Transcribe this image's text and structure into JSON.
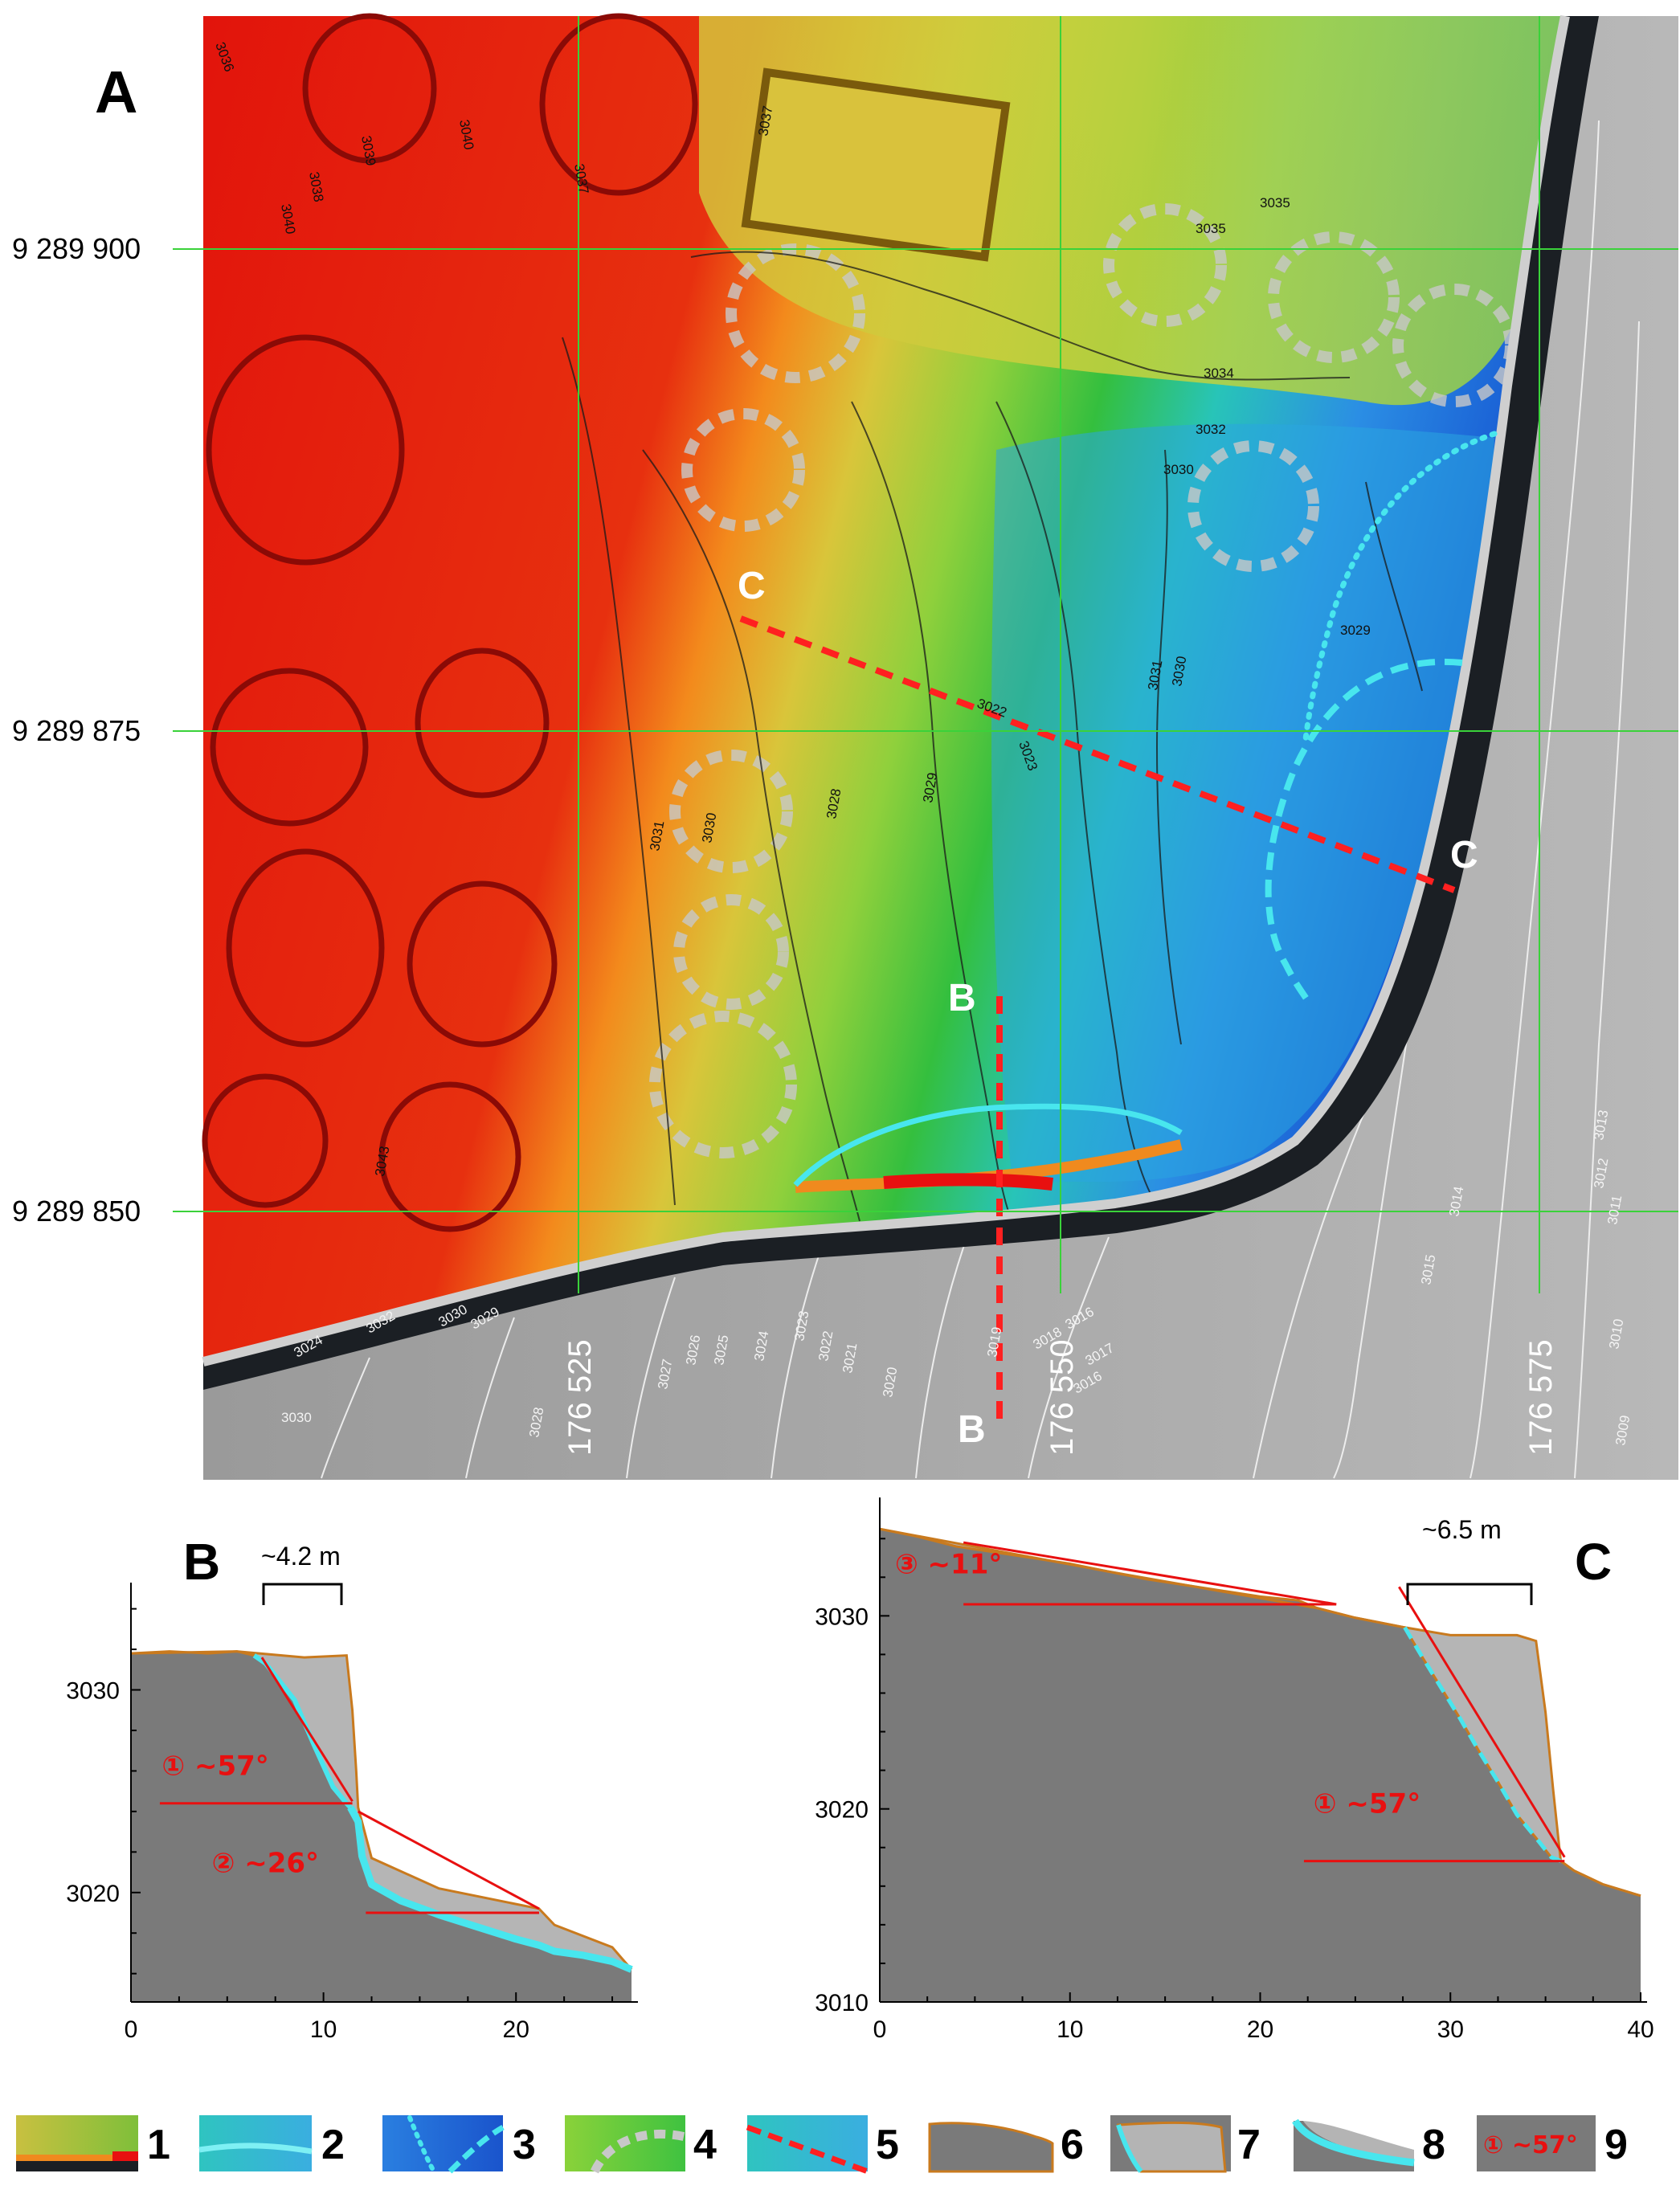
{
  "figure": {
    "map_panel": {
      "label": "A",
      "northing_labels": [
        "9 289 900",
        "9 289 875",
        "9 289 850"
      ],
      "easting_labels": [
        "176 525",
        "176 550",
        "176 575"
      ],
      "profile_labels": [
        "C",
        "C",
        "B",
        "B"
      ],
      "contour_labels": [
        "3036",
        "3039",
        "3040",
        "3037",
        "3038",
        "3040",
        "3037",
        "3035",
        "3035",
        "3034",
        "3032",
        "3030",
        "3029",
        "3031",
        "3030",
        "3023",
        "3029",
        "3028",
        "3031",
        "3030",
        "3043",
        "3022",
        "3013",
        "3012",
        "3011",
        "3014",
        "3015",
        "3010",
        "3009",
        "3016",
        "3017",
        "3016",
        "3018",
        "3019",
        "3020",
        "3021",
        "3022",
        "3023",
        "3024",
        "3025",
        "3026",
        "3027",
        "3028",
        "3029",
        "3030",
        "3032",
        "3024",
        "3030"
      ],
      "colors": {
        "grid": "#3ad23a",
        "profile_line": "#ff2020",
        "scar": "#48e6ee",
        "fill_orange": "#f08a1e",
        "fill_red": "#e81010",
        "river": "#1b1f24",
        "bank": "#bfbfbf"
      }
    },
    "legend": {
      "items": [
        {
          "num": "1",
          "icon": "dem-swatch-fill"
        },
        {
          "num": "2",
          "icon": "scar-line-swatch"
        },
        {
          "num": "3",
          "icon": "dotted-dashed-swatch"
        },
        {
          "num": "4",
          "icon": "circle-outline-swatch"
        },
        {
          "num": "5",
          "icon": "profile-line-swatch"
        },
        {
          "num": "6",
          "icon": "terrain-profile-swatch"
        },
        {
          "num": "7",
          "icon": "removed-volume-swatch"
        },
        {
          "num": "8",
          "icon": "scar-profile-swatch"
        },
        {
          "num": "9",
          "icon": "angle-label-swatch",
          "sample": "① ~57°"
        }
      ]
    }
  },
  "chart_data": [
    {
      "type": "area",
      "panel_label": "B",
      "x_ticks": [
        "0",
        "10",
        "20"
      ],
      "y_ticks": [
        "3020",
        "3030"
      ],
      "xlim": [
        0,
        26
      ],
      "ylim": [
        3014.6,
        3034.5
      ],
      "width_annotation": "~4.2 m",
      "series": [
        {
          "role": "current_surface",
          "x": [
            0,
            2,
            4,
            5.5,
            6.4,
            7,
            8.5,
            9.5,
            10.5,
            11.2,
            11.4,
            11.8,
            12.0,
            12.5,
            14,
            16,
            18,
            20,
            21.2,
            22,
            23.5,
            25,
            26
          ],
          "y": [
            3031.8,
            3031.9,
            3031.8,
            3031.9,
            3031.7,
            3031.3,
            3029.5,
            3027.3,
            3025.2,
            3024.4,
            3024.2,
            3023.5,
            3021.8,
            3020.4,
            3019.6,
            3018.9,
            3018.3,
            3017.7,
            3017.4,
            3017.1,
            3016.9,
            3016.6,
            3016.2
          ]
        },
        {
          "role": "pre_failure_surface",
          "x": [
            0,
            5.5,
            9,
            11.2,
            11.5,
            11.7,
            11.8,
            12.5,
            16,
            21.2,
            22,
            25,
            26
          ],
          "y": [
            3031.8,
            3031.9,
            3031.6,
            3031.7,
            3029,
            3026,
            3024.2,
            3021.7,
            3020.2,
            3019.2,
            3018.4,
            3017.3,
            3016.2
          ]
        },
        {
          "role": "slope_1_line",
          "x": [
            6.8,
            11.5
          ],
          "y": [
            3031.6,
            3024.5
          ]
        },
        {
          "role": "slope_2_line",
          "x": [
            11.8,
            21.2
          ],
          "y": [
            3024.0,
            3019.2
          ]
        },
        {
          "role": "horizontal_ref_1",
          "x": [
            1.5,
            11.5
          ],
          "y": [
            3024.4,
            3024.4
          ]
        },
        {
          "role": "horizontal_ref_2",
          "x": [
            12.2,
            21.2
          ],
          "y": [
            3019.0,
            3019.0
          ]
        }
      ],
      "angle_labels": [
        "① ~57°",
        "② ~26°"
      ]
    },
    {
      "type": "area",
      "panel_label": "C",
      "x_ticks": [
        "0",
        "10",
        "20",
        "30",
        "40"
      ],
      "y_ticks": [
        "3010",
        "3020",
        "3030"
      ],
      "xlim": [
        0,
        40
      ],
      "ylim": [
        3010,
        3035.3
      ],
      "width_annotation": "~6.5 m",
      "series": [
        {
          "role": "current_surface",
          "x": [
            0,
            2,
            4,
            6,
            8,
            10,
            12,
            14,
            16,
            18,
            20,
            22,
            23,
            25,
            27.6,
            28.5,
            29.5,
            30.5,
            31.5,
            32.5,
            33.5,
            34.5,
            35.3,
            35.8,
            36.5,
            38,
            40
          ],
          "y": [
            3034.5,
            3034.1,
            3033.6,
            3033.3,
            3033.0,
            3032.7,
            3032.3,
            3031.9,
            3031.6,
            3031.3,
            3031.0,
            3030.8,
            3030.4,
            3029.9,
            3029.4,
            3027.9,
            3026.3,
            3024.7,
            3023.0,
            3021.4,
            3019.7,
            3018.5,
            3017.5,
            3017.3,
            3016.8,
            3016.1,
            3015.5
          ]
        },
        {
          "role": "pre_failure_surface",
          "x": [
            0,
            12,
            23,
            25,
            27.6,
            30,
            33.5,
            34.5,
            35,
            35.4,
            35.8,
            36.5,
            38,
            40
          ],
          "y": [
            3034.5,
            3032.3,
            3030.4,
            3029.9,
            3029.4,
            3029.0,
            3029.0,
            3028.7,
            3025,
            3021,
            3017.3,
            3016.8,
            3016.1,
            3015.5
          ]
        },
        {
          "role": "slope_3_line",
          "x": [
            4.4,
            24
          ],
          "y": [
            3033.8,
            3030.6
          ]
        },
        {
          "role": "slope_1_line",
          "x": [
            27.3,
            36
          ],
          "y": [
            3031.5,
            3017.5
          ]
        },
        {
          "role": "horizontal_ref_3",
          "x": [
            4.4,
            24
          ],
          "y": [
            3030.6,
            3030.6
          ]
        },
        {
          "role": "horizontal_ref_1",
          "x": [
            22.3,
            36
          ],
          "y": [
            3017.3,
            3017.3
          ]
        }
      ],
      "angle_labels": [
        "③ ~11°",
        "① ~57°"
      ]
    }
  ]
}
